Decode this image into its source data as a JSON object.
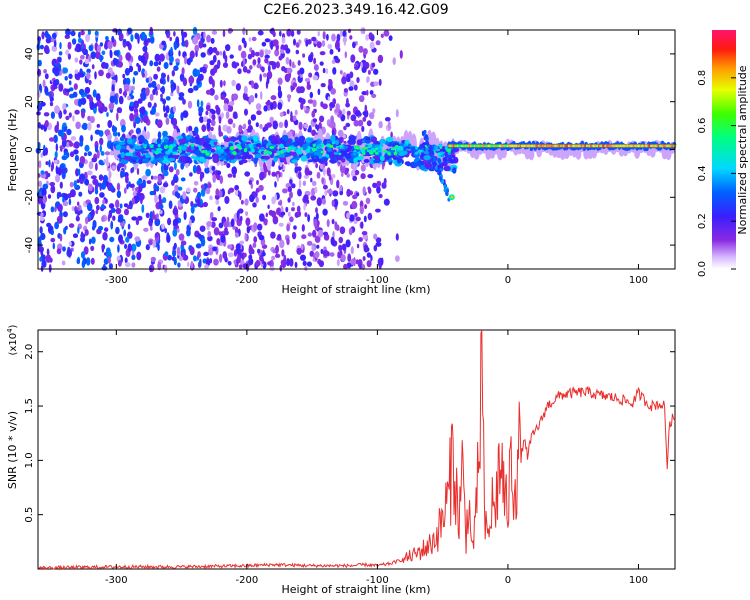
{
  "figure": {
    "title": "C2E6.2023.349.16.42.G09"
  },
  "chart_data": [
    {
      "type": "heatmap",
      "xlabel": "Height of straight line (km)",
      "ylabel": "Frequency (Hz)",
      "xlim": [
        -360,
        128
      ],
      "ylim": [
        -50,
        50
      ],
      "xticks": [
        -300,
        -200,
        -100,
        0,
        100
      ],
      "yticks": [
        -40,
        -20,
        0,
        20,
        40
      ],
      "grid": false,
      "colorbar": {
        "label": "Normalized spectral amplitude",
        "range": [
          0,
          1
        ],
        "ticks": [
          "0.0",
          "0.2",
          "0.4",
          "0.6",
          "0.8"
        ],
        "colormap": "rainbow (white→violet→blue→cyan→green→yellow→red→pink)"
      },
      "features": [
        {
          "x_range": [
            -360,
            -100
          ],
          "frequency": "broadband noise -50 to 50",
          "amplitude": 0.3
        },
        {
          "x_range": [
            -300,
            -40
          ],
          "frequency_center": 0,
          "amplitude": 0.45
        },
        {
          "x_range": [
            -60,
            -45
          ],
          "frequency_center": -20,
          "amplitude": 0.5
        },
        {
          "x_range": [
            -40,
            128
          ],
          "frequency_center": 2,
          "amplitude": 0.85
        }
      ]
    },
    {
      "type": "line",
      "xlabel": "Height of straight line (km)",
      "ylabel": "SNR (10 * v/v)",
      "y_multiplier": "(x10",
      "y_multiplier_exp": "4",
      "y_multiplier_close": ")",
      "xlim": [
        -360,
        128
      ],
      "ylim": [
        0,
        2.2
      ],
      "xticks": [
        -300,
        -200,
        -100,
        0,
        100
      ],
      "yticks": [
        "0.5",
        "1.0",
        "1.5",
        "2.0"
      ],
      "grid": false,
      "series": [
        {
          "color": "#e8302e",
          "x": [
            -360,
            -300,
            -250,
            -200,
            -180,
            -150,
            -120,
            -110,
            -100,
            -90,
            -80,
            -70,
            -60,
            -55,
            -50,
            -45,
            -42,
            -40,
            -38,
            -35,
            -32,
            -30,
            -28,
            -25,
            -22,
            -20,
            -18,
            -15,
            -12,
            -10,
            -8,
            -5,
            -2,
            0,
            3,
            5,
            8,
            10,
            12,
            15,
            18,
            20,
            25,
            30,
            35,
            40,
            50,
            60,
            70,
            80,
            90,
            95,
            100,
            105,
            110,
            115,
            120,
            122,
            124,
            126,
            128
          ],
          "y": [
            0.01,
            0.02,
            0.02,
            0.03,
            0.04,
            0.03,
            0.03,
            0.04,
            0.03,
            0.05,
            0.09,
            0.14,
            0.22,
            0.3,
            0.45,
            0.7,
            1.15,
            0.8,
            0.4,
            0.9,
            0.3,
            0.7,
            0.2,
            0.35,
            1.05,
            2.2,
            0.4,
            0.3,
            0.6,
            0.5,
            0.8,
            1.0,
            0.55,
            0.6,
            1.0,
            0.8,
            1.05,
            1.0,
            1.2,
            1.05,
            1.2,
            1.25,
            1.35,
            1.5,
            1.55,
            1.6,
            1.62,
            1.63,
            1.6,
            1.58,
            1.55,
            1.52,
            1.62,
            1.55,
            1.5,
            1.52,
            1.5,
            0.95,
            1.35,
            1.38,
            1.36
          ]
        }
      ]
    }
  ]
}
